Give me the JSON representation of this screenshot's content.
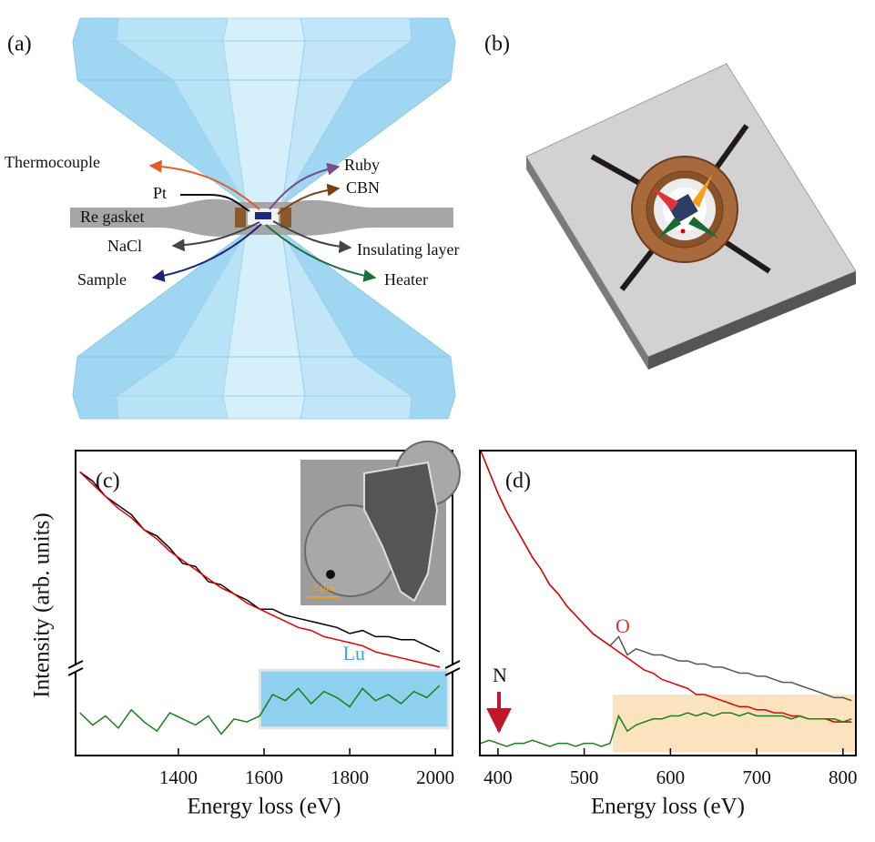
{
  "panels": [
    "(a)",
    "(b)",
    "(c)",
    "(d)"
  ],
  "cell_diagram": {
    "labels": [
      "Thermocouple",
      "Ruby",
      "Pt",
      "CBN",
      "Re gasket",
      "NaCl",
      "Insulating layer",
      "Sample",
      "Heater"
    ]
  },
  "chart_data": [
    {
      "type": "line",
      "x_label": "Energy loss (eV)",
      "y_label": "Intensity (arb. units)",
      "x": [
        1170,
        1200,
        1230,
        1260,
        1290,
        1320,
        1350,
        1380,
        1410,
        1440,
        1470,
        1500,
        1530,
        1560,
        1590,
        1620,
        1650,
        1680,
        1710,
        1740,
        1770,
        1800,
        1830,
        1860,
        1890,
        1920,
        1950,
        1980,
        2010
      ],
      "xlim": [
        1160,
        2040
      ],
      "xticks": [
        1400,
        1600,
        1800,
        2000
      ],
      "ylim": [
        0,
        100
      ],
      "series": [
        {
          "color": "#000000",
          "values": [
            93,
            90,
            85,
            82,
            79,
            74,
            72,
            68,
            63,
            62,
            57,
            56,
            53,
            51,
            48,
            48,
            46,
            45,
            44,
            43,
            42,
            40,
            41,
            39,
            39,
            38,
            38,
            36,
            34
          ]
        },
        {
          "color": "#e00000",
          "values": [
            93,
            89,
            85,
            81,
            78,
            74,
            71,
            67,
            64,
            61,
            58,
            55,
            53,
            50,
            48,
            46,
            44,
            42,
            41,
            39,
            38,
            37,
            36,
            34,
            33,
            32,
            31,
            30,
            29
          ]
        },
        {
          "color": "#1a7f1a",
          "values": [
            14,
            10,
            13,
            9,
            15,
            11,
            8,
            14,
            12,
            10,
            13,
            7,
            12,
            11,
            13,
            20,
            18,
            22,
            17,
            21,
            19,
            16,
            22,
            18,
            20,
            17,
            21,
            19,
            23
          ]
        }
      ],
      "highlight": {
        "label": "Lu",
        "color": "#8fd0ee",
        "xlim": [
          1590,
          2030
        ],
        "ylim": [
          9,
          28
        ]
      },
      "inset_scale": "2 μm"
    },
    {
      "type": "line",
      "x_label": "Energy loss (eV)",
      "x": [
        380,
        390,
        400,
        410,
        420,
        430,
        440,
        450,
        460,
        470,
        480,
        490,
        500,
        510,
        520,
        530,
        540,
        550,
        560,
        570,
        580,
        590,
        600,
        610,
        620,
        630,
        640,
        650,
        660,
        670,
        680,
        690,
        700,
        710,
        720,
        730,
        740,
        750,
        760,
        770,
        780,
        790,
        800,
        810
      ],
      "xlim": [
        379,
        815
      ],
      "xticks": [
        400,
        500,
        600,
        700,
        800
      ],
      "ylim": [
        0,
        100
      ],
      "series": [
        {
          "color": "#555555",
          "values": [
            100,
            93,
            86,
            80,
            75,
            70,
            65,
            61,
            56,
            53,
            49,
            46,
            43,
            40,
            38,
            36,
            39,
            33,
            35,
            34,
            33,
            33,
            32,
            31,
            31,
            30,
            30,
            29,
            29,
            28,
            27,
            27,
            26,
            26,
            25,
            24,
            24,
            23,
            22,
            21,
            20,
            19,
            19,
            18
          ]
        },
        {
          "color": "#e00000",
          "values": [
            100,
            93,
            86,
            80,
            75,
            70,
            65,
            61,
            56,
            53,
            49,
            46,
            43,
            40,
            38,
            36,
            34,
            32,
            30,
            28,
            27,
            25,
            24,
            23,
            22,
            20,
            20,
            19,
            18,
            17,
            16,
            16,
            15,
            15,
            14,
            14,
            13,
            13,
            12,
            12,
            12,
            11,
            11,
            11
          ]
        },
        {
          "color": "#1a7f1a",
          "values": [
            4,
            5,
            4,
            3,
            4,
            4,
            5,
            4,
            3,
            4,
            4,
            3,
            4,
            4,
            3,
            4,
            13,
            8,
            10,
            11,
            12,
            12,
            13,
            13,
            14,
            13,
            14,
            13,
            14,
            14,
            13,
            14,
            13,
            13,
            13,
            13,
            12,
            13,
            12,
            12,
            12,
            12,
            11,
            12
          ]
        }
      ],
      "highlight": {
        "color": "#fbe3bf",
        "xlim": [
          533,
          815
        ],
        "ylim": [
          1,
          20
        ]
      },
      "annotations": [
        "O",
        "N"
      ]
    }
  ]
}
